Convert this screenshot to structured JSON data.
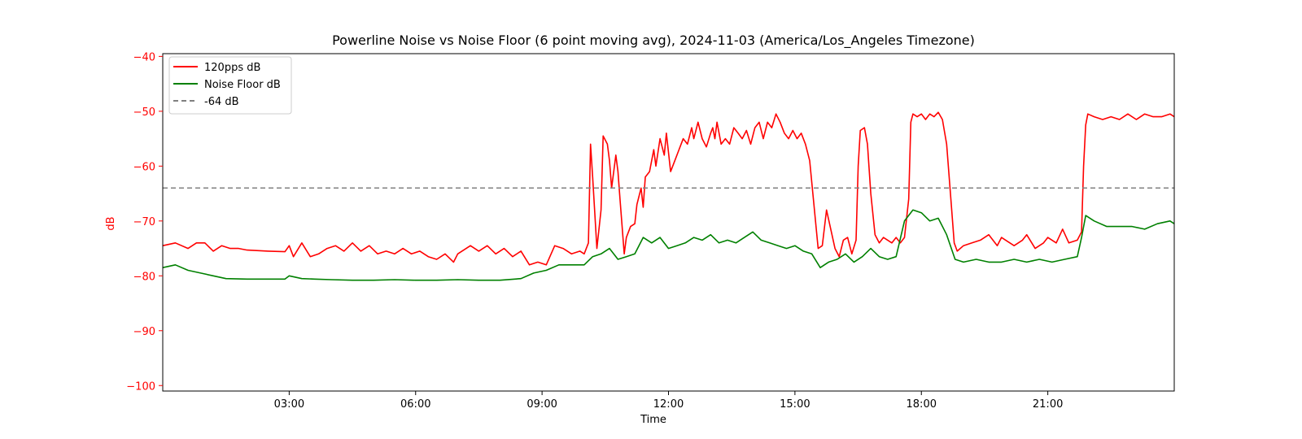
{
  "chart_data": {
    "type": "line",
    "title": "Powerline Noise vs Noise Floor (6 point moving avg), 2024-11-03 (America/Los_Angeles Timezone)",
    "xlabel": "Time",
    "ylabel": "dB",
    "x_unit": "hours",
    "xlim": [
      0,
      24
    ],
    "ylim": [
      -101,
      -39.5
    ],
    "x_ticks": [
      {
        "value": 3,
        "label": "03:00"
      },
      {
        "value": 6,
        "label": "06:00"
      },
      {
        "value": 9,
        "label": "09:00"
      },
      {
        "value": 12,
        "label": "12:00"
      },
      {
        "value": 15,
        "label": "15:00"
      },
      {
        "value": 18,
        "label": "18:00"
      },
      {
        "value": 21,
        "label": "21:00"
      }
    ],
    "y_ticks": [
      {
        "value": -40,
        "label": "−40"
      },
      {
        "value": -50,
        "label": "−50"
      },
      {
        "value": -60,
        "label": "−60"
      },
      {
        "value": -70,
        "label": "−70"
      },
      {
        "value": -80,
        "label": "−80"
      },
      {
        "value": -90,
        "label": "−90"
      },
      {
        "value": -100,
        "label": "−100"
      }
    ],
    "legend_position": "top-left",
    "grid": false,
    "series": [
      {
        "name": "120pps dB",
        "color": "#ff0000",
        "style": "solid",
        "points": [
          [
            0.0,
            -74.5
          ],
          [
            0.3,
            -74.0
          ],
          [
            0.6,
            -75.0
          ],
          [
            0.8,
            -74.0
          ],
          [
            1.0,
            -74.0
          ],
          [
            1.2,
            -75.5
          ],
          [
            1.4,
            -74.5
          ],
          [
            1.6,
            -75.0
          ],
          [
            1.8,
            -75.0
          ],
          [
            2.0,
            -75.3
          ],
          [
            2.5,
            -75.5
          ],
          [
            2.9,
            -75.6
          ],
          [
            3.0,
            -74.5
          ],
          [
            3.1,
            -76.5
          ],
          [
            3.3,
            -74.0
          ],
          [
            3.5,
            -76.5
          ],
          [
            3.7,
            -76.0
          ],
          [
            3.9,
            -75.0
          ],
          [
            4.1,
            -74.5
          ],
          [
            4.3,
            -75.5
          ],
          [
            4.5,
            -74.0
          ],
          [
            4.7,
            -75.5
          ],
          [
            4.9,
            -74.5
          ],
          [
            5.1,
            -76.0
          ],
          [
            5.3,
            -75.5
          ],
          [
            5.5,
            -76.0
          ],
          [
            5.7,
            -75.0
          ],
          [
            5.9,
            -76.0
          ],
          [
            6.1,
            -75.5
          ],
          [
            6.3,
            -76.5
          ],
          [
            6.5,
            -77.0
          ],
          [
            6.7,
            -76.0
          ],
          [
            6.9,
            -77.5
          ],
          [
            7.0,
            -76.0
          ],
          [
            7.3,
            -74.5
          ],
          [
            7.5,
            -75.5
          ],
          [
            7.7,
            -74.5
          ],
          [
            7.9,
            -76.0
          ],
          [
            8.1,
            -75.0
          ],
          [
            8.3,
            -76.5
          ],
          [
            8.5,
            -75.5
          ],
          [
            8.7,
            -78.0
          ],
          [
            8.9,
            -77.5
          ],
          [
            9.1,
            -78.0
          ],
          [
            9.3,
            -74.5
          ],
          [
            9.5,
            -75.0
          ],
          [
            9.7,
            -76.0
          ],
          [
            9.9,
            -75.5
          ],
          [
            10.0,
            -76.0
          ],
          [
            10.1,
            -74.0
          ],
          [
            10.15,
            -56.0
          ],
          [
            10.2,
            -62.0
          ],
          [
            10.3,
            -75.0
          ],
          [
            10.4,
            -68.0
          ],
          [
            10.45,
            -54.5
          ],
          [
            10.55,
            -56.0
          ],
          [
            10.6,
            -59.0
          ],
          [
            10.65,
            -64.0
          ],
          [
            10.75,
            -58.0
          ],
          [
            10.8,
            -61.0
          ],
          [
            10.85,
            -66.0
          ],
          [
            10.95,
            -76.0
          ],
          [
            11.0,
            -73.0
          ],
          [
            11.1,
            -71.0
          ],
          [
            11.2,
            -70.5
          ],
          [
            11.25,
            -67.0
          ],
          [
            11.35,
            -64.0
          ],
          [
            11.4,
            -67.5
          ],
          [
            11.45,
            -62.0
          ],
          [
            11.55,
            -61.0
          ],
          [
            11.65,
            -57.0
          ],
          [
            11.7,
            -60.0
          ],
          [
            11.8,
            -55.0
          ],
          [
            11.9,
            -58.0
          ],
          [
            11.95,
            -54.0
          ],
          [
            12.05,
            -61.0
          ],
          [
            12.15,
            -59.0
          ],
          [
            12.25,
            -57.0
          ],
          [
            12.35,
            -55.0
          ],
          [
            12.45,
            -56.0
          ],
          [
            12.55,
            -53.0
          ],
          [
            12.6,
            -55.0
          ],
          [
            12.7,
            -52.0
          ],
          [
            12.8,
            -55.0
          ],
          [
            12.9,
            -56.5
          ],
          [
            13.0,
            -54.0
          ],
          [
            13.05,
            -53.0
          ],
          [
            13.1,
            -55.0
          ],
          [
            13.15,
            -52.0
          ],
          [
            13.25,
            -56.0
          ],
          [
            13.35,
            -55.0
          ],
          [
            13.45,
            -56.0
          ],
          [
            13.55,
            -53.0
          ],
          [
            13.65,
            -54.0
          ],
          [
            13.75,
            -55.0
          ],
          [
            13.85,
            -53.5
          ],
          [
            13.95,
            -56.0
          ],
          [
            14.05,
            -53.0
          ],
          [
            14.15,
            -52.0
          ],
          [
            14.25,
            -55.0
          ],
          [
            14.35,
            -52.0
          ],
          [
            14.45,
            -53.0
          ],
          [
            14.55,
            -50.5
          ],
          [
            14.65,
            -52.0
          ],
          [
            14.75,
            -54.0
          ],
          [
            14.85,
            -55.0
          ],
          [
            14.95,
            -53.5
          ],
          [
            15.05,
            -55.0
          ],
          [
            15.15,
            -54.0
          ],
          [
            15.25,
            -56.0
          ],
          [
            15.35,
            -59.0
          ],
          [
            15.45,
            -67.0
          ],
          [
            15.55,
            -75.0
          ],
          [
            15.65,
            -74.5
          ],
          [
            15.75,
            -68.0
          ],
          [
            15.85,
            -71.5
          ],
          [
            15.95,
            -75.0
          ],
          [
            16.05,
            -76.5
          ],
          [
            16.15,
            -73.5
          ],
          [
            16.25,
            -73.0
          ],
          [
            16.35,
            -76.0
          ],
          [
            16.45,
            -73.5
          ],
          [
            16.5,
            -60.0
          ],
          [
            16.55,
            -53.5
          ],
          [
            16.65,
            -53.0
          ],
          [
            16.72,
            -56.0
          ],
          [
            16.8,
            -65.0
          ],
          [
            16.9,
            -72.5
          ],
          [
            17.0,
            -74.0
          ],
          [
            17.1,
            -73.0
          ],
          [
            17.2,
            -73.5
          ],
          [
            17.3,
            -74.0
          ],
          [
            17.4,
            -73.0
          ],
          [
            17.5,
            -74.0
          ],
          [
            17.6,
            -73.0
          ],
          [
            17.7,
            -66.0
          ],
          [
            17.75,
            -52.0
          ],
          [
            17.8,
            -50.5
          ],
          [
            17.9,
            -51.0
          ],
          [
            18.0,
            -50.5
          ],
          [
            18.1,
            -51.5
          ],
          [
            18.2,
            -50.5
          ],
          [
            18.3,
            -51.0
          ],
          [
            18.4,
            -50.2
          ],
          [
            18.5,
            -51.5
          ],
          [
            18.6,
            -56.0
          ],
          [
            18.7,
            -66.0
          ],
          [
            18.78,
            -74.0
          ],
          [
            18.85,
            -75.5
          ],
          [
            19.0,
            -74.5
          ],
          [
            19.2,
            -74.0
          ],
          [
            19.4,
            -73.5
          ],
          [
            19.6,
            -72.5
          ],
          [
            19.8,
            -74.5
          ],
          [
            19.9,
            -73.0
          ],
          [
            20.0,
            -73.5
          ],
          [
            20.2,
            -74.5
          ],
          [
            20.4,
            -73.5
          ],
          [
            20.5,
            -72.5
          ],
          [
            20.7,
            -75.0
          ],
          [
            20.9,
            -74.0
          ],
          [
            21.0,
            -73.0
          ],
          [
            21.2,
            -74.0
          ],
          [
            21.35,
            -71.5
          ],
          [
            21.5,
            -74.0
          ],
          [
            21.7,
            -73.5
          ],
          [
            21.8,
            -72.0
          ],
          [
            21.85,
            -60.0
          ],
          [
            21.9,
            -52.5
          ],
          [
            21.95,
            -50.5
          ],
          [
            22.1,
            -51.0
          ],
          [
            22.3,
            -51.5
          ],
          [
            22.5,
            -51.0
          ],
          [
            22.7,
            -51.5
          ],
          [
            22.9,
            -50.5
          ],
          [
            23.1,
            -51.5
          ],
          [
            23.3,
            -50.5
          ],
          [
            23.5,
            -51.0
          ],
          [
            23.7,
            -51.0
          ],
          [
            23.9,
            -50.5
          ],
          [
            24.0,
            -51.0
          ]
        ]
      },
      {
        "name": "Noise Floor dB",
        "color": "#008000",
        "style": "solid",
        "points": [
          [
            0.0,
            -78.5
          ],
          [
            0.3,
            -78.0
          ],
          [
            0.6,
            -79.0
          ],
          [
            0.9,
            -79.5
          ],
          [
            1.2,
            -80.0
          ],
          [
            1.5,
            -80.5
          ],
          [
            2.0,
            -80.6
          ],
          [
            2.5,
            -80.6
          ],
          [
            2.9,
            -80.6
          ],
          [
            3.0,
            -80.0
          ],
          [
            3.3,
            -80.5
          ],
          [
            3.6,
            -80.6
          ],
          [
            4.0,
            -80.7
          ],
          [
            4.5,
            -80.8
          ],
          [
            5.0,
            -80.8
          ],
          [
            5.5,
            -80.7
          ],
          [
            6.0,
            -80.8
          ],
          [
            6.5,
            -80.8
          ],
          [
            7.0,
            -80.7
          ],
          [
            7.5,
            -80.8
          ],
          [
            8.0,
            -80.8
          ],
          [
            8.5,
            -80.5
          ],
          [
            8.8,
            -79.5
          ],
          [
            9.1,
            -79.0
          ],
          [
            9.4,
            -78.0
          ],
          [
            9.7,
            -78.0
          ],
          [
            10.0,
            -78.0
          ],
          [
            10.2,
            -76.5
          ],
          [
            10.4,
            -76.0
          ],
          [
            10.6,
            -75.0
          ],
          [
            10.8,
            -77.0
          ],
          [
            11.0,
            -76.5
          ],
          [
            11.2,
            -76.0
          ],
          [
            11.4,
            -73.0
          ],
          [
            11.6,
            -74.0
          ],
          [
            11.8,
            -73.0
          ],
          [
            12.0,
            -75.0
          ],
          [
            12.2,
            -74.5
          ],
          [
            12.4,
            -74.0
          ],
          [
            12.6,
            -73.0
          ],
          [
            12.8,
            -73.5
          ],
          [
            13.0,
            -72.5
          ],
          [
            13.2,
            -74.0
          ],
          [
            13.4,
            -73.5
          ],
          [
            13.6,
            -74.0
          ],
          [
            13.8,
            -73.0
          ],
          [
            14.0,
            -72.0
          ],
          [
            14.2,
            -73.5
          ],
          [
            14.4,
            -74.0
          ],
          [
            14.6,
            -74.5
          ],
          [
            14.8,
            -75.0
          ],
          [
            15.0,
            -74.5
          ],
          [
            15.2,
            -75.5
          ],
          [
            15.4,
            -76.0
          ],
          [
            15.6,
            -78.5
          ],
          [
            15.8,
            -77.5
          ],
          [
            16.0,
            -77.0
          ],
          [
            16.2,
            -76.0
          ],
          [
            16.4,
            -77.5
          ],
          [
            16.6,
            -76.5
          ],
          [
            16.8,
            -75.0
          ],
          [
            17.0,
            -76.5
          ],
          [
            17.2,
            -77.0
          ],
          [
            17.4,
            -76.5
          ],
          [
            17.6,
            -70.0
          ],
          [
            17.8,
            -68.0
          ],
          [
            18.0,
            -68.5
          ],
          [
            18.2,
            -70.0
          ],
          [
            18.4,
            -69.5
          ],
          [
            18.6,
            -72.5
          ],
          [
            18.8,
            -77.0
          ],
          [
            19.0,
            -77.5
          ],
          [
            19.3,
            -77.0
          ],
          [
            19.6,
            -77.5
          ],
          [
            19.9,
            -77.5
          ],
          [
            20.2,
            -77.0
          ],
          [
            20.5,
            -77.5
          ],
          [
            20.8,
            -77.0
          ],
          [
            21.1,
            -77.5
          ],
          [
            21.4,
            -77.0
          ],
          [
            21.7,
            -76.5
          ],
          [
            21.8,
            -73.0
          ],
          [
            21.9,
            -69.0
          ],
          [
            22.1,
            -70.0
          ],
          [
            22.4,
            -71.0
          ],
          [
            22.7,
            -71.0
          ],
          [
            23.0,
            -71.0
          ],
          [
            23.3,
            -71.5
          ],
          [
            23.6,
            -70.5
          ],
          [
            23.9,
            -70.0
          ],
          [
            24.0,
            -70.5
          ]
        ]
      },
      {
        "name": "-64 dB",
        "color": "#808080",
        "style": "dashed",
        "points": [
          [
            0,
            -64
          ],
          [
            24,
            -64
          ]
        ]
      }
    ]
  }
}
